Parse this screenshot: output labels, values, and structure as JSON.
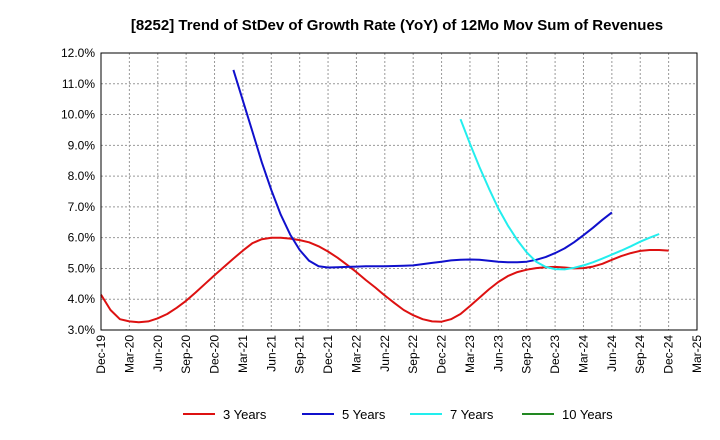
{
  "chart_data": {
    "type": "line",
    "title": "[8252]  Trend of StDev of Growth Rate (YoY) of 12Mo Mov Sum of Revenues",
    "xlabel": "",
    "ylabel": "",
    "ylim": [
      3.0,
      12.0
    ],
    "y_ticks": [
      "3.0%",
      "4.0%",
      "5.0%",
      "6.0%",
      "7.0%",
      "8.0%",
      "9.0%",
      "10.0%",
      "11.0%",
      "12.0%"
    ],
    "x_ticks": [
      "Dec-19",
      "Mar-20",
      "Jun-20",
      "Sep-20",
      "Dec-20",
      "Mar-21",
      "Jun-21",
      "Sep-21",
      "Dec-21",
      "Mar-22",
      "Jun-22",
      "Sep-22",
      "Dec-22",
      "Mar-23",
      "Jun-23",
      "Sep-23",
      "Dec-23",
      "Mar-24",
      "Jun-24",
      "Sep-24",
      "Dec-24",
      "Mar-25"
    ],
    "grid": true,
    "legend_position": "bottom",
    "series": [
      {
        "name": "3 Years",
        "color": "#dd1111",
        "start_index": 0,
        "values": [
          4.15,
          3.65,
          3.35,
          3.28,
          3.25,
          3.28,
          3.38,
          3.52,
          3.72,
          3.95,
          4.22,
          4.5,
          4.78,
          5.05,
          5.32,
          5.58,
          5.82,
          5.95,
          6.0,
          6.0,
          5.97,
          5.92,
          5.85,
          5.72,
          5.55,
          5.35,
          5.12,
          4.88,
          4.62,
          4.38,
          4.12,
          3.88,
          3.65,
          3.48,
          3.35,
          3.28,
          3.27,
          3.35,
          3.52,
          3.78,
          4.05,
          4.32,
          4.56,
          4.75,
          4.88,
          4.96,
          5.01,
          5.04,
          5.05,
          5.03,
          5.0,
          5.01,
          5.06,
          5.15,
          5.28,
          5.4,
          5.5,
          5.57,
          5.6,
          5.6,
          5.58
        ]
      },
      {
        "name": "5 Years",
        "color": "#1010cc",
        "start_index": 14,
        "values": [
          11.45,
          10.45,
          9.45,
          8.45,
          7.55,
          6.75,
          6.1,
          5.6,
          5.25,
          5.07,
          5.03,
          5.04,
          5.05,
          5.06,
          5.07,
          5.07,
          5.07,
          5.08,
          5.09,
          5.1,
          5.14,
          5.18,
          5.22,
          5.26,
          5.28,
          5.29,
          5.28,
          5.25,
          5.22,
          5.2,
          5.2,
          5.22,
          5.28,
          5.37,
          5.5,
          5.65,
          5.85,
          6.08,
          6.32,
          6.58,
          6.82
        ]
      },
      {
        "name": "7 Years",
        "color": "#22eeee",
        "start_index": 38,
        "values": [
          9.85,
          9.05,
          8.3,
          7.6,
          6.95,
          6.4,
          5.92,
          5.52,
          5.22,
          5.05,
          4.98,
          4.97,
          5.02,
          5.1,
          5.2,
          5.32,
          5.45,
          5.58,
          5.72,
          5.87,
          6.0,
          6.12
        ]
      },
      {
        "name": "10 Years",
        "color": "#228822",
        "start_index": 0,
        "values": []
      }
    ]
  }
}
